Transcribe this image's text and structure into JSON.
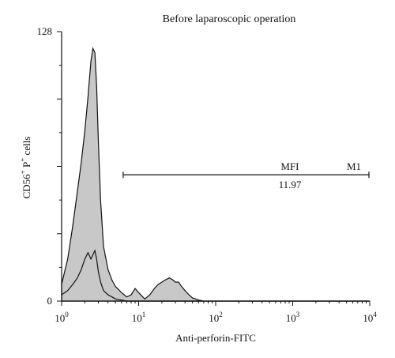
{
  "chart_data": {
    "type": "area",
    "title": "Before laparoscopic operation",
    "xlabel": "Anti-perforin-FITC",
    "ylabel": {
      "base": "CD56",
      "sup1": "+",
      "mid": " P",
      "sup2": "+",
      "tail": " cells"
    },
    "x_scale": "log",
    "xlim": [
      1,
      10000
    ],
    "ylim": [
      0,
      128
    ],
    "yticks": [
      "0",
      "128"
    ],
    "xticks": [
      {
        "base": "10",
        "exp": "0"
      },
      {
        "base": "10",
        "exp": "1"
      },
      {
        "base": "10",
        "exp": "2"
      },
      {
        "base": "10",
        "exp": "3"
      },
      {
        "base": "10",
        "exp": "4"
      }
    ],
    "series": [
      {
        "style": "filled-gray",
        "fill": "#c8c8c8",
        "x": [
          1.0,
          1.2,
          1.4,
          1.6,
          1.8,
          2.0,
          2.2,
          2.4,
          2.55,
          2.7,
          2.85,
          3.0,
          3.2,
          3.5,
          4.0,
          4.5,
          5,
          6,
          7,
          8,
          9,
          10,
          12,
          14,
          16,
          18,
          20,
          22,
          25,
          28,
          30,
          33,
          36,
          40,
          45,
          50,
          55,
          60,
          70,
          80,
          100,
          10000
        ],
        "y": [
          8,
          20,
          36,
          52,
          66,
          81,
          97,
          114,
          120,
          118,
          102,
          76,
          48,
          26,
          15,
          10,
          7,
          4,
          2,
          3,
          6,
          4,
          1,
          3,
          6,
          8,
          9,
          10,
          11,
          10,
          9,
          9,
          7,
          5,
          3,
          1.5,
          1,
          0.5,
          0,
          0,
          0,
          0
        ]
      },
      {
        "style": "outline",
        "color": "#111111",
        "x": [
          1.0,
          1.2,
          1.4,
          1.6,
          1.8,
          2.0,
          2.2,
          2.4,
          2.55,
          2.7,
          2.85,
          3.0,
          3.2,
          3.5,
          4.0,
          4.5,
          5,
          6,
          7,
          8,
          10,
          10000
        ],
        "y": [
          3,
          5,
          8,
          11,
          15,
          20,
          23,
          20,
          22,
          24,
          20,
          14,
          9,
          5,
          3,
          2,
          1,
          0.5,
          0,
          0,
          0,
          0
        ]
      }
    ],
    "marker": {
      "label": "M1",
      "stat_label": "MFI",
      "stat_value": "11.97",
      "x_range": [
        6.3,
        10000
      ],
      "y": 60
    }
  }
}
